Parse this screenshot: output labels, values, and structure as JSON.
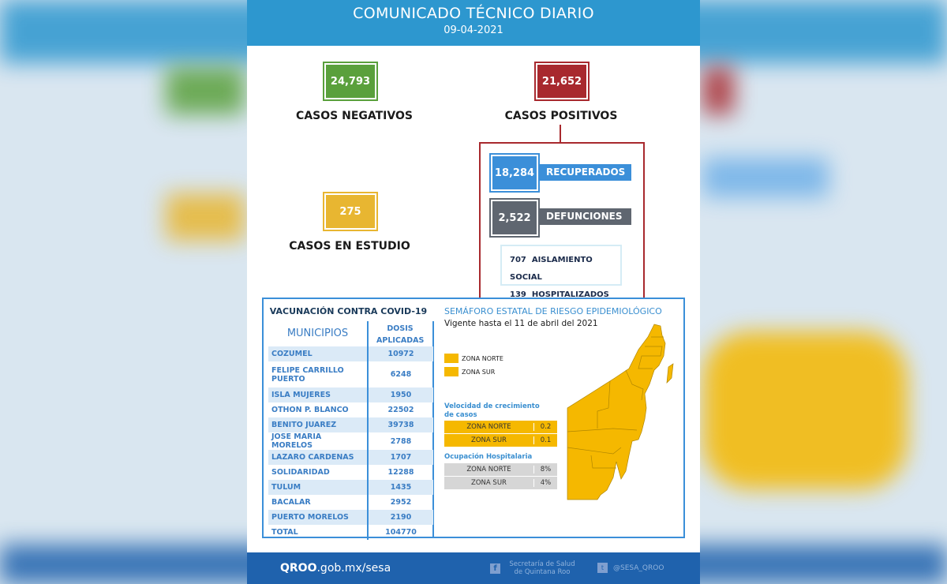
{
  "header": {
    "title": "COMUNICADO TÉCNICO DIARIO",
    "date": "09-04-2021"
  },
  "stats": {
    "negativos": {
      "value": "24,793",
      "label": "CASOS NEGATIVOS",
      "color": "#5aa03c"
    },
    "positivos": {
      "value": "21,652",
      "label": "CASOS POSITIVOS",
      "color": "#a8292e"
    },
    "estudio": {
      "value": "275",
      "label": "CASOS EN ESTUDIO",
      "color": "#e8b631"
    },
    "recuperados": {
      "value": "18,284",
      "label": "RECUPERADOS",
      "color": "#3b8fd9"
    },
    "defunciones": {
      "value": "2,522",
      "label": "DEFUNCIONES",
      "color": "#5f6670"
    },
    "aislamiento": {
      "value": "707",
      "label": "AISLAMIENTO SOCIAL"
    },
    "hospitalizados": {
      "value": "139",
      "label": "HOSPITALIZADOS"
    }
  },
  "vacunacion": {
    "title": "VACUNACIÓN CONTRA COVID-19",
    "col1": "MUNICIPIOS",
    "col2": "DOSIS APLICADAS",
    "rows": [
      [
        "COZUMEL",
        "10972"
      ],
      [
        "FELIPE CARRILLO PUERTO",
        "6248"
      ],
      [
        "ISLA MUJERES",
        "1950"
      ],
      [
        "OTHON P. BLANCO",
        "22502"
      ],
      [
        "BENITO JUAREZ",
        "39738"
      ],
      [
        "JOSE MARIA MORELOS",
        "2788"
      ],
      [
        "LAZARO CARDENAS",
        "1707"
      ],
      [
        "SOLIDARIDAD",
        "12288"
      ],
      [
        "TULUM",
        "1435"
      ],
      [
        "BACALAR",
        "2952"
      ],
      [
        "PUERTO MORELOS",
        "2190"
      ],
      [
        "TOTAL",
        "104770"
      ]
    ]
  },
  "semaforo": {
    "title": "SEMÁFORO ESTATAL DE RIESGO EPIDEMIOLÓGICO",
    "subtitle": "Vigente hasta el 11 de abril del 2021",
    "legend": [
      {
        "label": "ZONA NORTE",
        "color": "#f5b800"
      },
      {
        "label": "ZONA SUR",
        "color": "#f5b800"
      }
    ],
    "velocidad": {
      "title": "Velocidad de crecimiento de casos",
      "rows": [
        [
          "ZONA NORTE",
          "0.2"
        ],
        [
          "ZONA SUR",
          "0.1"
        ]
      ]
    },
    "ocupacion": {
      "title": "Ocupación Hospitalaria",
      "rows": [
        [
          "ZONA NORTE",
          "8%"
        ],
        [
          "ZONA SUR",
          "4%"
        ]
      ]
    }
  },
  "footer": {
    "site_bold": "QROO",
    "site_rest": ".gob.mx/sesa",
    "facebook": "Secretaría de Salud de Quintana Roo",
    "twitter": "@SESA_QROO"
  }
}
